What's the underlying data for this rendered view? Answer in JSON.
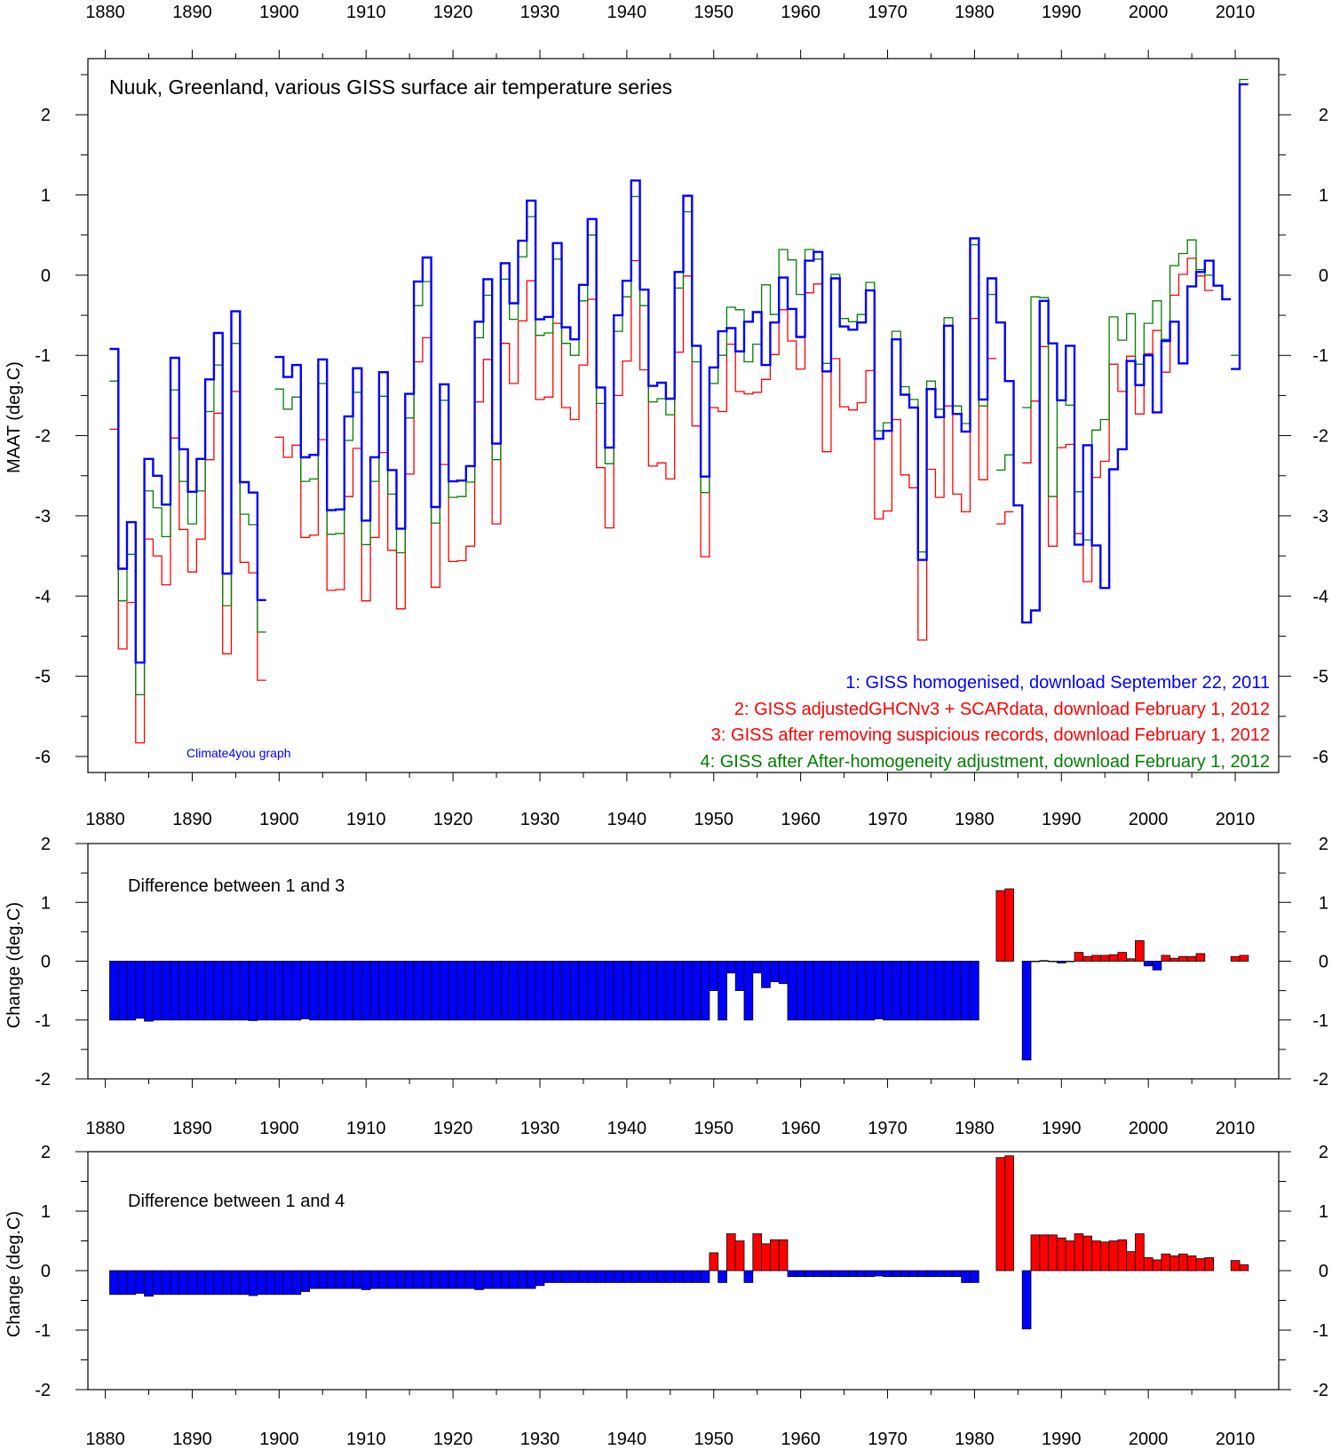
{
  "chart_data": [
    {
      "type": "line",
      "title": "Nuuk, Greenland, various GISS surface air temperature series",
      "ylabel": "MAAT (deg.C)",
      "xlim": [
        1878,
        2015
      ],
      "ylim": [
        -6.2,
        2.7
      ],
      "x_ticks": [
        1880,
        1890,
        1900,
        1910,
        1920,
        1930,
        1940,
        1950,
        1960,
        1970,
        1980,
        1990,
        2000,
        2010
      ],
      "y_ticks": [
        -6,
        -5,
        -4,
        -3,
        -2,
        -1,
        0,
        1,
        2
      ],
      "grid": false,
      "legend_position": "bottom-right",
      "credit": "Climate4you graph",
      "series": [
        {
          "name": "1: GISS homogenised, download September 22, 2011",
          "color": "#0000ff",
          "segments": [
            {
              "start": 1881,
              "values": [
                -0.92,
                -3.66,
                -3.08,
                -4.83,
                -2.29,
                -2.5,
                -2.86,
                -1.03,
                -2.17,
                -2.7,
                -2.29,
                -1.3,
                -0.72,
                -3.72,
                -0.45,
                -2.58,
                -2.71,
                -4.05
              ]
            },
            {
              "start": 1900,
              "values": [
                -1.02,
                -1.27,
                -1.12,
                -2.27,
                -2.24,
                -1.05,
                -2.93,
                -2.92,
                -1.76,
                -1.16,
                -3.06,
                -2.27,
                -1.21,
                -2.43,
                -3.16,
                -1.48,
                -0.08,
                0.22,
                -2.89,
                -1.36,
                -2.57,
                -2.56,
                -2.38,
                -0.58,
                -0.05,
                -2.1,
                0.15,
                -0.35,
                0.43,
                0.93,
                -0.55,
                -0.52,
                0.4,
                -0.65,
                -0.8,
                -0.12,
                0.7,
                -1.4,
                -2.15,
                -0.5,
                -0.07,
                1.18,
                -0.18,
                -1.38,
                -1.34,
                -1.54,
                0.04,
                0.99,
                -0.88,
                -2.51,
                -1.15,
                -0.7,
                -0.66,
                -0.95,
                -0.58,
                -0.46,
                -1.12,
                -0.59,
                -0.03,
                -0.42,
                -0.77,
                0.18,
                0.29,
                -1.2,
                -0.04,
                -0.64,
                -0.68,
                -0.59,
                -0.19,
                -2.04,
                -1.94,
                -0.8,
                -1.49,
                -1.65,
                -3.55,
                -1.42,
                -1.77,
                -0.63,
                -1.73,
                -1.95,
                0.46,
                -1.55,
                -0.04,
                -0.59,
                -1.32,
                -2.87,
                -4.33,
                -4.18,
                -0.32,
                -0.85,
                -1.56,
                -0.88,
                -3.36,
                -2.12,
                -3.37,
                -3.9,
                -2.42,
                -2.17,
                -1.07,
                -1.37,
                -1.0,
                -1.71,
                -0.82,
                -0.58,
                -1.1,
                -0.14,
                0.04,
                0.18,
                -0.13,
                -0.3
              ]
            },
            {
              "start": 2010,
              "values": [
                -1.17,
                2.38
              ]
            }
          ]
        },
        {
          "name": "2: GISS adjustedGHCNv3 + SCARdata, download February 1, 2012",
          "color": "#ff0000",
          "segments": []
        },
        {
          "name": "3: GISS after removing suspicious records, download February 1, 2012",
          "color": "#ff0000",
          "segments": [
            {
              "start": 1881,
              "values": [
                -1.92,
                -4.66,
                -4.08,
                -5.83,
                -3.29,
                -3.5,
                -3.86,
                -2.03,
                -3.17,
                -3.7,
                -3.29,
                -2.3,
                -1.72,
                -4.72,
                -1.45,
                -3.58,
                -3.71,
                -5.05
              ]
            },
            {
              "start": 1900,
              "values": [
                -2.02,
                -2.27,
                -2.12,
                -3.27,
                -3.24,
                -2.05,
                -3.93,
                -3.92,
                -2.76,
                -2.16,
                -4.06,
                -3.27,
                -2.21,
                -3.43,
                -4.16,
                -2.48,
                -1.08,
                -0.78,
                -3.89,
                -2.36,
                -3.57,
                -3.56,
                -3.38,
                -1.58,
                -1.05,
                -3.1,
                -0.85,
                -1.35,
                -0.57,
                -0.07,
                -1.55,
                -1.52,
                -0.6,
                -1.65,
                -1.8,
                -1.12,
                -0.3,
                -2.4,
                -3.15,
                -1.5,
                -1.07,
                0.18,
                -1.18,
                -2.38,
                -2.34,
                -2.54,
                -0.96,
                -0.01,
                -1.88,
                -3.51,
                -1.65,
                -1.7,
                -0.86,
                -1.45,
                -1.48,
                -1.46,
                -1.3,
                -0.99,
                -0.43,
                -0.82,
                -1.17,
                -0.22,
                -0.11,
                -2.2,
                -1.04,
                -1.64,
                -1.68,
                -1.59,
                -1.19,
                -3.04,
                -2.94,
                -1.8,
                -2.49,
                -2.65,
                -4.55,
                -2.42,
                -2.77,
                -1.63,
                -2.73,
                -2.95,
                -0.54,
                -2.55,
                -1.04
              ]
            },
            {
              "start": 1983,
              "values": [
                -3.1,
                -2.95
              ]
            },
            {
              "start": 1986,
              "values": [
                -2.34,
                -1.57,
                -0.89,
                -3.38,
                -2.15,
                -2.11,
                -3.22,
                -3.82,
                -2.52,
                -2.32,
                -1.11,
                -1.45,
                -1.01,
                -1.73,
                -0.98,
                -0.69,
                -1.21,
                -0.25,
                0.01,
                0.21,
                -0.01,
                -0.19
              ]
            },
            {
              "start": 2010,
              "values": [
                -1.17
              ]
            }
          ]
        },
        {
          "name": "4: GISS after After-homogeneity adjustment, download February 1, 2012",
          "color": "#008000",
          "segments": [
            {
              "start": 1881,
              "values": [
                -1.32,
                -4.06,
                -3.48,
                -5.23,
                -2.69,
                -2.9,
                -3.26,
                -1.43,
                -2.57,
                -3.1,
                -2.69,
                -1.7,
                -1.12,
                -4.12,
                -0.85,
                -2.98,
                -3.11,
                -4.45
              ]
            },
            {
              "start": 1900,
              "values": [
                -1.42,
                -1.67,
                -1.52,
                -2.57,
                -2.54,
                -1.35,
                -3.23,
                -3.22,
                -2.06,
                -1.46,
                -3.36,
                -2.57,
                -1.51,
                -2.73,
                -3.46,
                -1.78,
                -0.38,
                -0.08,
                -3.09,
                -1.56,
                -2.77,
                -2.76,
                -2.58,
                -0.78,
                -0.25,
                -2.3,
                -0.05,
                -0.55,
                0.23,
                0.73,
                -0.75,
                -0.72,
                0.2,
                -0.85,
                -1.0,
                -0.32,
                0.5,
                -1.6,
                -2.35,
                -0.7,
                -0.27,
                0.98,
                -0.38,
                -1.58,
                -1.54,
                -1.74,
                -0.16,
                0.79,
                -1.08,
                -2.71,
                -1.35,
                -1.0,
                -0.4,
                -0.43,
                -1.08,
                -0.86,
                -0.12,
                -0.49,
                0.32,
                0.19,
                -0.24,
                0.32,
                0.2,
                -1.1,
                0.01,
                -0.54,
                -0.58,
                -0.49,
                -0.09,
                -1.94,
                -1.84,
                -0.7,
                -1.39,
                -1.55,
                -3.45,
                -1.32,
                -1.67,
                -0.53,
                -1.63,
                -1.85,
                0.38,
                -1.63,
                -0.24
              ]
            },
            {
              "start": 1983,
              "values": [
                -2.43,
                -2.24
              ]
            },
            {
              "start": 1986,
              "values": [
                -1.65,
                -0.27,
                -0.28,
                -2.76,
                -1.56,
                -1.62,
                -2.7,
                -3.3,
                -1.93,
                -1.8,
                -0.52,
                -0.81,
                -0.48,
                -1.11,
                -0.6,
                -0.32,
                -0.8,
                0.12,
                0.27,
                0.44,
                0.07,
                0.0
              ]
            },
            {
              "start": 2010,
              "values": [
                -1.0,
                2.44
              ]
            }
          ]
        }
      ]
    },
    {
      "type": "bar",
      "annotation": "Difference between 1 and 3",
      "ylabel": "Change (deg.C)",
      "xlim": [
        1878,
        2015
      ],
      "ylim": [
        -2,
        2
      ],
      "x_ticks": [
        1880,
        1890,
        1900,
        1910,
        1920,
        1930,
        1940,
        1950,
        1960,
        1970,
        1980,
        1990,
        2000,
        2010
      ],
      "y_ticks": [
        -2,
        -1,
        0,
        1,
        2
      ],
      "positive_color": "#ff0000",
      "negative_color": "#0000ff",
      "segments": [
        {
          "start": 1881,
          "values": [
            -1,
            -1,
            -1,
            -0.97,
            -1.02,
            -1,
            -1,
            -1,
            -1,
            -1,
            -1,
            -1,
            -1,
            -1,
            -1,
            -1,
            -1.01,
            -1,
            -1
          ]
        },
        {
          "start": 1900,
          "values": [
            -1,
            -1,
            -1,
            -0.98,
            -1,
            -1,
            -1,
            -1,
            -1,
            -1,
            -1,
            -1,
            -1,
            -1,
            -1,
            -1,
            -1,
            -1,
            -1,
            -1,
            -1,
            -1,
            -1,
            -1,
            -1,
            -1,
            -1,
            -1,
            -1,
            -1,
            -1,
            -1,
            -1,
            -1,
            -1,
            -1,
            -1,
            -1,
            -1,
            -1,
            -1,
            -1,
            -1,
            -1,
            -1,
            -1,
            -1,
            -1,
            -1,
            -1,
            -0.5,
            -1,
            -0.2,
            -0.5,
            -1,
            -0.2,
            -0.45,
            -0.35,
            -0.38,
            -1,
            -1,
            -1,
            -1,
            -1,
            -1,
            -1,
            -1,
            -1,
            -1,
            -0.98,
            -1,
            -1,
            -1,
            -1,
            -1,
            -1,
            -1,
            -1,
            -1,
            -1,
            -1
          ]
        },
        {
          "start": 1983,
          "values": [
            1.2,
            1.23
          ]
        },
        {
          "start": 1986,
          "values": [
            -1.68,
            0,
            0.01,
            0,
            -0.03,
            0,
            0.15,
            0.08,
            0.1,
            0.1,
            0.11,
            0.15,
            0.04,
            0.35,
            -0.08,
            -0.15,
            0.1,
            0.05,
            0.08,
            0.08,
            0.13
          ]
        },
        {
          "start": 2010,
          "values": [
            0.08,
            0.1
          ]
        }
      ]
    },
    {
      "type": "bar",
      "annotation": "Difference between 1 and 4",
      "ylabel": "Change (deg.C)",
      "xlim": [
        1878,
        2015
      ],
      "ylim": [
        -2,
        2
      ],
      "x_ticks": [
        1880,
        1890,
        1900,
        1910,
        1920,
        1930,
        1940,
        1950,
        1960,
        1970,
        1980,
        1990,
        2000,
        2010
      ],
      "y_ticks": [
        -2,
        -1,
        0,
        1,
        2
      ],
      "positive_color": "#ff0000",
      "negative_color": "#0000ff",
      "segments": [
        {
          "start": 1881,
          "values": [
            -0.4,
            -0.4,
            -0.4,
            -0.38,
            -0.43,
            -0.4,
            -0.4,
            -0.4,
            -0.4,
            -0.4,
            -0.4,
            -0.4,
            -0.4,
            -0.4,
            -0.4,
            -0.4,
            -0.42,
            -0.4,
            -0.4
          ]
        },
        {
          "start": 1900,
          "values": [
            -0.4,
            -0.4,
            -0.4,
            -0.35,
            -0.3,
            -0.3,
            -0.3,
            -0.3,
            -0.3,
            -0.3,
            -0.32,
            -0.3,
            -0.3,
            -0.3,
            -0.3,
            -0.3,
            -0.3,
            -0.3,
            -0.3,
            -0.3,
            -0.3,
            -0.3,
            -0.3,
            -0.32,
            -0.3,
            -0.3,
            -0.3,
            -0.3,
            -0.3,
            -0.3,
            -0.25,
            -0.2,
            -0.2,
            -0.2,
            -0.2,
            -0.2,
            -0.2,
            -0.2,
            -0.2,
            -0.2,
            -0.2,
            -0.2,
            -0.2,
            -0.2,
            -0.2,
            -0.2,
            -0.2,
            -0.2,
            -0.2,
            -0.2,
            0.3,
            -0.2,
            0.62,
            0.5,
            -0.2,
            0.62,
            0.45,
            0.52,
            0.52,
            -0.1,
            -0.1,
            -0.1,
            -0.1,
            -0.1,
            -0.1,
            -0.1,
            -0.1,
            -0.1,
            -0.1,
            -0.09,
            -0.1,
            -0.1,
            -0.1,
            -0.1,
            -0.1,
            -0.1,
            -0.1,
            -0.1,
            -0.1,
            -0.2,
            -0.2
          ]
        },
        {
          "start": 1983,
          "values": [
            1.9,
            1.93
          ]
        },
        {
          "start": 1986,
          "values": [
            -0.98,
            0.6,
            0.6,
            0.6,
            0.55,
            0.5,
            0.62,
            0.58,
            0.5,
            0.48,
            0.5,
            0.52,
            0.32,
            0.62,
            0.22,
            0.18,
            0.28,
            0.25,
            0.28,
            0.25,
            0.2,
            0.22
          ]
        },
        {
          "start": 2010,
          "values": [
            0.17,
            0.1
          ]
        }
      ]
    }
  ]
}
